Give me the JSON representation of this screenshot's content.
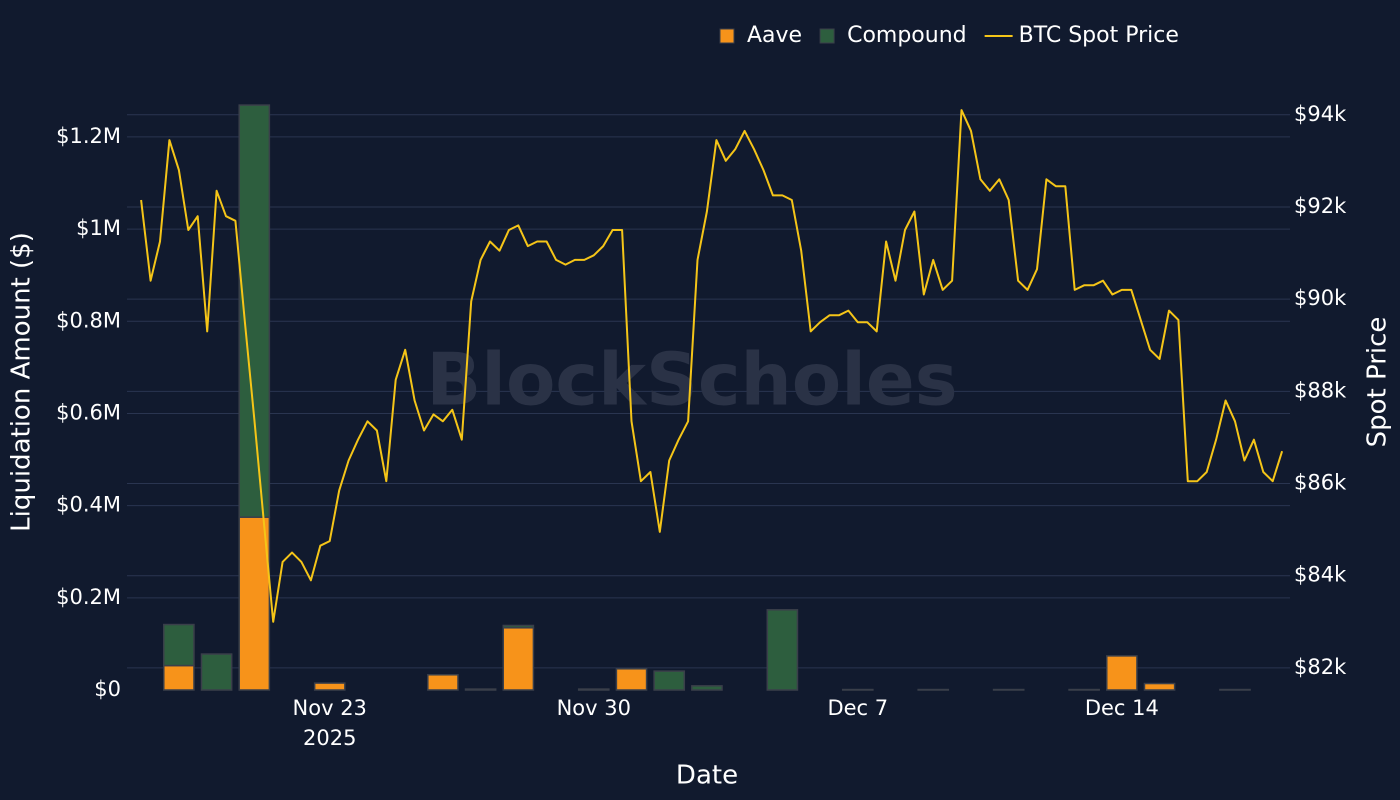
{
  "chart_data": {
    "type": "bar",
    "watermark": "BlockScholes",
    "xlabel": "Date",
    "ylabel": "Liquidation Amount ($)",
    "y2label": "Spot Price",
    "xlim": [
      "2025-11-17T15:00",
      "2025-12-18T11:00"
    ],
    "xticks": [
      {
        "value": "2025-11-23",
        "label": "Nov 23"
      },
      {
        "value": "2025-11-30",
        "label": "Nov 30"
      },
      {
        "value": "2025-12-07",
        "label": "Dec 7"
      },
      {
        "value": "2025-12-14",
        "label": "Dec 14"
      }
    ],
    "x_year": "2025",
    "ylim": [
      0,
      1280000
    ],
    "yticks": [
      {
        "value": 0,
        "label": "$0"
      },
      {
        "value": 200000,
        "label": "$0.2M"
      },
      {
        "value": 400000,
        "label": "$0.4M"
      },
      {
        "value": 600000,
        "label": "$0.6M"
      },
      {
        "value": 800000,
        "label": "$0.8M"
      },
      {
        "value": 1000000,
        "label": "$1M"
      },
      {
        "value": 1200000,
        "label": "$1.2M"
      }
    ],
    "y2lim": [
      81520,
      94320
    ],
    "y2ticks": [
      {
        "value": 82000,
        "label": "$82k"
      },
      {
        "value": 84000,
        "label": "$84k"
      },
      {
        "value": 86000,
        "label": "$86k"
      },
      {
        "value": 88000,
        "label": "$88k"
      },
      {
        "value": 90000,
        "label": "$90k"
      },
      {
        "value": 92000,
        "label": "$92k"
      },
      {
        "value": 94000,
        "label": "$94k"
      }
    ],
    "grid": true,
    "stacked": true,
    "legend": "top",
    "categories": [
      "2025-11-19",
      "2025-11-20",
      "2025-11-21",
      "2025-11-22",
      "2025-11-23",
      "2025-11-24",
      "2025-11-25",
      "2025-11-26",
      "2025-11-27",
      "2025-11-28",
      "2025-11-29",
      "2025-11-30",
      "2025-12-01",
      "2025-12-02",
      "2025-12-03",
      "2025-12-04",
      "2025-12-05",
      "2025-12-06",
      "2025-12-07",
      "2025-12-08",
      "2025-12-09",
      "2025-12-10",
      "2025-12-11",
      "2025-12-12",
      "2025-12-13",
      "2025-12-14",
      "2025-12-15",
      "2025-12-16",
      "2025-12-17"
    ],
    "series": [
      {
        "name": "Aave",
        "color": "#f7931a",
        "type": "bar",
        "values": [
          53000,
          0,
          375000,
          0,
          15000,
          0,
          0,
          33000,
          0,
          135000,
          0,
          0,
          46000,
          0,
          0,
          0,
          0,
          0,
          0,
          0,
          0,
          0,
          0,
          0,
          0,
          74000,
          14000,
          0,
          0
        ]
      },
      {
        "name": "Compound",
        "color": "#2d5e3e",
        "type": "bar",
        "values": [
          89000,
          78000,
          894000,
          0,
          0,
          0,
          0,
          0,
          2000,
          5000,
          0,
          2000,
          0,
          41000,
          9000,
          0,
          174000,
          0,
          1000,
          0,
          1000,
          0,
          1000,
          0,
          1000,
          0,
          0,
          0,
          1000
        ]
      },
      {
        "name": "BTC Spot Price",
        "color": "#f5c518",
        "type": "line",
        "axis": "y2",
        "x": [
          "2025-11-18T00:00",
          "2025-11-18T06:00",
          "2025-11-18T12:00",
          "2025-11-18T18:00",
          "2025-11-19T00:00",
          "2025-11-19T06:00",
          "2025-11-19T12:00",
          "2025-11-19T18:00",
          "2025-11-20T00:00",
          "2025-11-20T06:00",
          "2025-11-20T12:00",
          "2025-11-20T18:00",
          "2025-11-21T00:00",
          "2025-11-21T06:00",
          "2025-11-21T12:00",
          "2025-11-21T18:00",
          "2025-11-22T00:00",
          "2025-11-22T06:00",
          "2025-11-22T12:00",
          "2025-11-22T18:00",
          "2025-11-23T00:00",
          "2025-11-23T06:00",
          "2025-11-23T12:00",
          "2025-11-23T18:00",
          "2025-11-24T00:00",
          "2025-11-24T06:00",
          "2025-11-24T12:00",
          "2025-11-24T18:00",
          "2025-11-25T00:00",
          "2025-11-25T06:00",
          "2025-11-25T12:00",
          "2025-11-25T18:00",
          "2025-11-26T00:00",
          "2025-11-26T06:00",
          "2025-11-26T12:00",
          "2025-11-26T18:00",
          "2025-11-27T00:00",
          "2025-11-27T06:00",
          "2025-11-27T12:00",
          "2025-11-27T18:00",
          "2025-11-28T00:00",
          "2025-11-28T06:00",
          "2025-11-28T12:00",
          "2025-11-28T18:00",
          "2025-11-29T00:00",
          "2025-11-29T06:00",
          "2025-11-29T12:00",
          "2025-11-29T18:00",
          "2025-11-30T00:00",
          "2025-11-30T06:00",
          "2025-11-30T12:00",
          "2025-11-30T18:00",
          "2025-12-01T00:00",
          "2025-12-01T06:00",
          "2025-12-01T12:00",
          "2025-12-01T18:00",
          "2025-12-02T00:00",
          "2025-12-02T06:00",
          "2025-12-02T12:00",
          "2025-12-02T18:00",
          "2025-12-03T00:00",
          "2025-12-03T06:00",
          "2025-12-03T12:00",
          "2025-12-03T18:00",
          "2025-12-04T00:00",
          "2025-12-04T06:00",
          "2025-12-04T12:00",
          "2025-12-04T18:00",
          "2025-12-05T00:00",
          "2025-12-05T06:00",
          "2025-12-05T12:00",
          "2025-12-05T18:00",
          "2025-12-06T00:00",
          "2025-12-06T06:00",
          "2025-12-06T12:00",
          "2025-12-06T18:00",
          "2025-12-07T00:00",
          "2025-12-07T06:00",
          "2025-12-07T12:00",
          "2025-12-07T18:00",
          "2025-12-08T00:00",
          "2025-12-08T06:00",
          "2025-12-08T12:00",
          "2025-12-08T18:00",
          "2025-12-09T00:00",
          "2025-12-09T06:00",
          "2025-12-09T12:00",
          "2025-12-09T18:00",
          "2025-12-10T00:00",
          "2025-12-10T06:00",
          "2025-12-10T12:00",
          "2025-12-10T18:00",
          "2025-12-11T00:00",
          "2025-12-11T06:00",
          "2025-12-11T12:00",
          "2025-12-11T18:00",
          "2025-12-12T00:00",
          "2025-12-12T06:00",
          "2025-12-12T12:00",
          "2025-12-12T18:00",
          "2025-12-13T00:00",
          "2025-12-13T06:00",
          "2025-12-13T12:00",
          "2025-12-13T18:00",
          "2025-12-14T00:00",
          "2025-12-14T06:00",
          "2025-12-14T12:00",
          "2025-12-14T18:00",
          "2025-12-15T00:00",
          "2025-12-15T06:00",
          "2025-12-15T12:00",
          "2025-12-15T18:00",
          "2025-12-16T00:00",
          "2025-12-16T06:00",
          "2025-12-16T12:00",
          "2025-12-16T18:00",
          "2025-12-17T00:00",
          "2025-12-17T06:00",
          "2025-12-17T12:00",
          "2025-12-17T18:00",
          "2025-12-18T00:00",
          "2025-12-18T06:00"
        ],
        "values": [
          92150,
          90400,
          91250,
          93450,
          92800,
          91500,
          91800,
          89300,
          92350,
          91800,
          91700,
          89500,
          87400,
          85200,
          83000,
          84300,
          84500,
          84300,
          83900,
          84650,
          84750,
          85850,
          86500,
          86950,
          87350,
          87150,
          86050,
          88250,
          88900,
          87800,
          87150,
          87500,
          87350,
          87600,
          86950,
          89950,
          90850,
          91250,
          91050,
          91500,
          91600,
          91150,
          91250,
          91250,
          90850,
          90750,
          90850,
          90850,
          90950,
          91150,
          91500,
          91500,
          87350,
          86050,
          86250,
          84950,
          86500,
          86950,
          87350,
          90850,
          91900,
          93450,
          93000,
          93250,
          93650,
          93250,
          92800,
          92250,
          92250,
          92150,
          91050,
          89300,
          89500,
          89650,
          89650,
          89750,
          89500,
          89500,
          89300,
          91250,
          90400,
          91500,
          91900,
          90100,
          90850,
          90200,
          90400,
          94100,
          93650,
          92600,
          92350,
          92600,
          92150,
          90400,
          90200,
          90650,
          92600,
          92450,
          92450,
          90200,
          90300,
          90300,
          90400,
          90100,
          90200,
          90200,
          89550,
          88900,
          88700,
          89750,
          89550,
          86050,
          86050,
          86250,
          86950,
          87800,
          87350,
          86500,
          86950,
          86250,
          86050,
          86700
        ]
      }
    ]
  }
}
